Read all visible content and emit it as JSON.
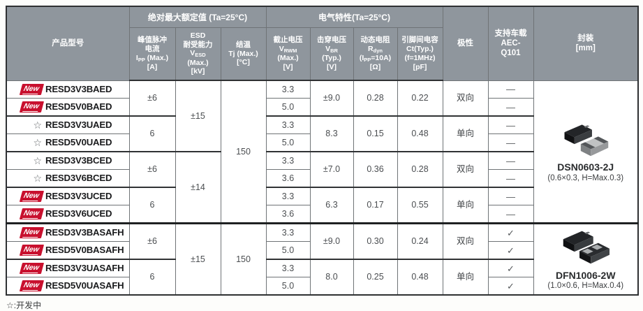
{
  "accent": {
    "badge_red": "#c8102e",
    "header_gray": "#8f969d"
  },
  "table": {
    "header": {
      "product": "产品型号",
      "groups": [
        {
          "label": "绝对最大额定值 (Ta=25°C)",
          "cols": [
            "ipp",
            "vesd",
            "tj"
          ]
        },
        {
          "label": "电气特性(Ta=25°C)",
          "cols": [
            "vrwm",
            "vbr",
            "rdyn",
            "ct"
          ]
        }
      ],
      "columns": {
        "ipp": [
          "峰值脉冲",
          "电流",
          "I_{PP} (Max.)",
          "[A]"
        ],
        "vesd": [
          "ESD",
          "耐受能力",
          "V_{ESD}",
          "(Max.)",
          "[kV]"
        ],
        "tj": [
          "结温",
          "Tj (Max.)",
          "[°C]"
        ],
        "vrwm": [
          "截止电压",
          "V_{RWM}",
          "(Max.)",
          "[V]"
        ],
        "vbr": [
          "击穿电压",
          "V_{BR}",
          "(Typ.)",
          "[V]"
        ],
        "rdyn": [
          "动态电阻",
          "R_{dyn}",
          "(I_{PP}=10A)",
          "[Ω]"
        ],
        "ct": [
          "引脚间电容",
          "Ct(Typ.)",
          "(f=1MHz)",
          "[pF]"
        ],
        "polarity": [
          "极性"
        ],
        "aec": [
          "支持车载",
          "AEC-",
          "Q101"
        ],
        "package": [
          "封装",
          "[mm]"
        ]
      }
    },
    "badge_new_label": "New",
    "star_symbol": "☆",
    "dash_symbol": "—",
    "check_symbol": "✓",
    "packages": [
      {
        "name": "DSN0603-2J",
        "dims": "(0.6×0.3, H=Max.0.3)",
        "icon": "dsn-chips-image"
      },
      {
        "name": "DFN1006-2W",
        "dims": "(1.0×0.6, H=Max.0.4)",
        "icon": "dfn-chips-image"
      }
    ],
    "rows": [
      {
        "badge": "new",
        "model": "RESD3V3BAED",
        "cells": {
          "ipp": {
            "v": "±6",
            "span": 2
          },
          "vesd": {
            "v": "±15",
            "span": 4
          },
          "tj": {
            "v": "150",
            "span": 8
          },
          "vrwm": {
            "v": "3.3"
          },
          "vbr": {
            "v": "±9.0",
            "span": 2
          },
          "rdyn": {
            "v": "0.28",
            "span": 2
          },
          "ct": {
            "v": "0.22",
            "span": 2
          },
          "polarity": {
            "v": "双向",
            "span": 2
          },
          "aec": {
            "v": "—"
          },
          "package": {
            "pkg": 0,
            "span": 8
          }
        }
      },
      {
        "badge": "new",
        "model": "RESD5V0BAED",
        "cells": {
          "vrwm": {
            "v": "5.0"
          },
          "aec": {
            "v": "—"
          }
        }
      },
      {
        "badge": "star",
        "model": "RESD3V3UAED",
        "cells": {
          "ipp": {
            "v": "6",
            "span": 2
          },
          "vrwm": {
            "v": "3.3"
          },
          "vbr": {
            "v": "8.3",
            "span": 2
          },
          "rdyn": {
            "v": "0.15",
            "span": 2
          },
          "ct": {
            "v": "0.48",
            "span": 2
          },
          "polarity": {
            "v": "单向",
            "span": 2
          },
          "aec": {
            "v": "—"
          }
        }
      },
      {
        "badge": "star",
        "model": "RESD5V0UAED",
        "cells": {
          "vrwm": {
            "v": "5.0"
          },
          "aec": {
            "v": "—"
          }
        }
      },
      {
        "badge": "star",
        "model": "RESD3V3BCED",
        "cells": {
          "ipp": {
            "v": "±6",
            "span": 2
          },
          "vesd": {
            "v": "±14",
            "span": 4
          },
          "vrwm": {
            "v": "3.3"
          },
          "vbr": {
            "v": "±7.0",
            "span": 2
          },
          "rdyn": {
            "v": "0.36",
            "span": 2
          },
          "ct": {
            "v": "0.28",
            "span": 2
          },
          "polarity": {
            "v": "双向",
            "span": 2
          },
          "aec": {
            "v": "—"
          }
        }
      },
      {
        "badge": "star",
        "model": "RESD3V6BCED",
        "cells": {
          "vrwm": {
            "v": "3.6"
          },
          "aec": {
            "v": "—"
          }
        }
      },
      {
        "badge": "new",
        "model": "RESD3V3UCED",
        "cells": {
          "ipp": {
            "v": "6",
            "span": 2
          },
          "vrwm": {
            "v": "3.3"
          },
          "vbr": {
            "v": "6.3",
            "span": 2
          },
          "rdyn": {
            "v": "0.17",
            "span": 2
          },
          "ct": {
            "v": "0.55",
            "span": 2
          },
          "polarity": {
            "v": "单向",
            "span": 2
          },
          "aec": {
            "v": "—"
          }
        }
      },
      {
        "badge": "new",
        "model": "RESD3V6UCED",
        "cells": {
          "vrwm": {
            "v": "3.6"
          },
          "aec": {
            "v": "—"
          }
        }
      },
      {
        "badge": "new",
        "model": "RESD3V3BASAFH",
        "cells": {
          "ipp": {
            "v": "±6",
            "span": 2
          },
          "vesd": {
            "v": "±15",
            "span": 4
          },
          "tj": {
            "v": "150",
            "span": 4
          },
          "vrwm": {
            "v": "3.3"
          },
          "vbr": {
            "v": "±9.0",
            "span": 2
          },
          "rdyn": {
            "v": "0.30",
            "span": 2
          },
          "ct": {
            "v": "0.24",
            "span": 2
          },
          "polarity": {
            "v": "双向",
            "span": 2
          },
          "aec": {
            "v": "✓"
          },
          "package": {
            "pkg": 1,
            "span": 4
          }
        }
      },
      {
        "badge": "new",
        "model": "RESD5V0BASAFH",
        "cells": {
          "vrwm": {
            "v": "5.0"
          },
          "aec": {
            "v": "✓"
          }
        }
      },
      {
        "badge": "new",
        "model": "RESD3V3UASAFH",
        "cells": {
          "ipp": {
            "v": "6",
            "span": 2
          },
          "vrwm": {
            "v": "3.3"
          },
          "vbr": {
            "v": "8.0",
            "span": 2
          },
          "rdyn": {
            "v": "0.25",
            "span": 2
          },
          "ct": {
            "v": "0.48",
            "span": 2
          },
          "polarity": {
            "v": "单向",
            "span": 2
          },
          "aec": {
            "v": "✓"
          }
        }
      },
      {
        "badge": "new",
        "model": "RESD5V0UASAFH",
        "cells": {
          "vrwm": {
            "v": "5.0"
          },
          "aec": {
            "v": "✓"
          }
        }
      }
    ]
  },
  "footer": {
    "note": "☆:开发中"
  }
}
